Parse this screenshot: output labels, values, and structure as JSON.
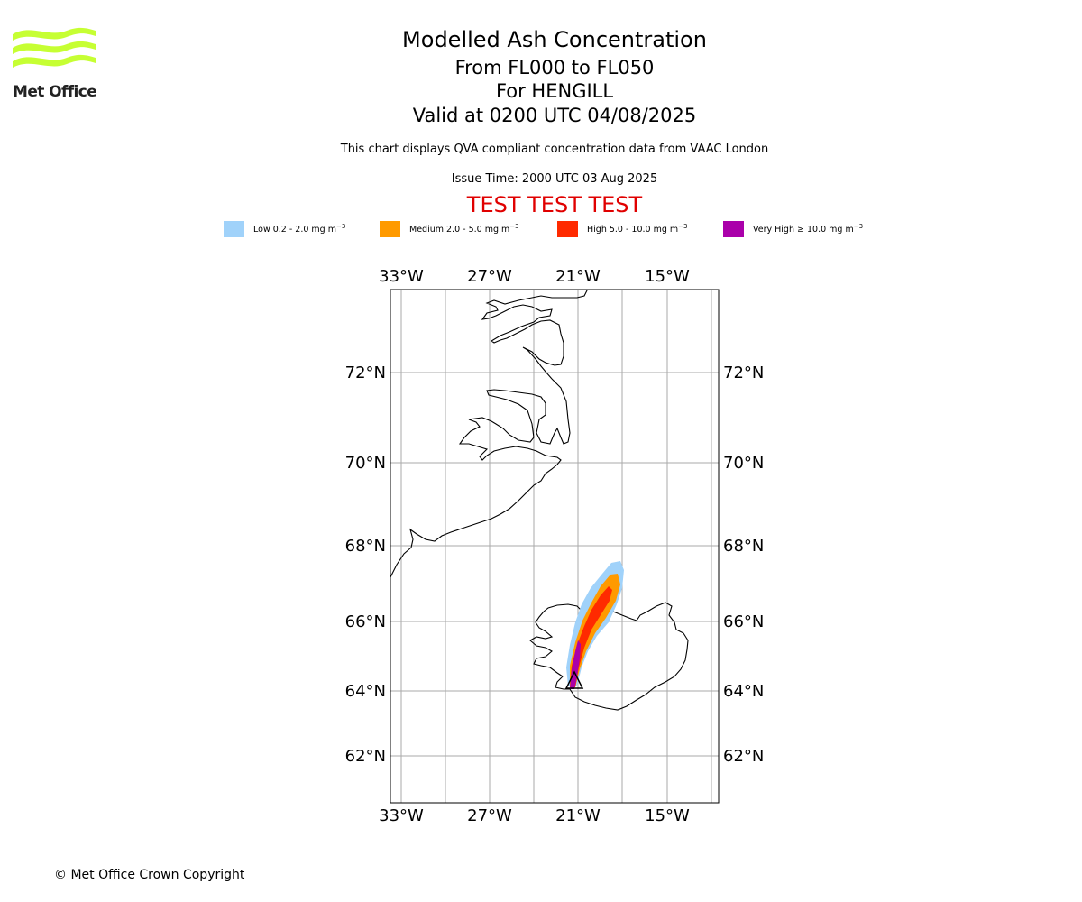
{
  "logo": {
    "name": "Met Office",
    "color": "#c6ff33"
  },
  "title": "Modelled Ash Concentration",
  "subtitle_levels": "From FL000 to FL050",
  "subtitle_volcano": "For HENGILL",
  "subtitle_valid": "Valid at 0200 UTC 04/08/2025",
  "description": "This chart displays QVA compliant concentration data from VAAC London",
  "issue_time": "Issue Time: 2000 UTC 03 Aug 2025",
  "test_banner": "TEST TEST TEST",
  "legend": [
    {
      "label": "Low 0.2 - 2.0 mg m",
      "unit_exp": "−3",
      "color": "#a0d2fa"
    },
    {
      "label": "Medium 2.0 - 5.0 mg m",
      "unit_exp": "−3",
      "color": "#ff9a00"
    },
    {
      "label": "High 5.0 - 10.0 mg m",
      "unit_exp": "−3",
      "color": "#ff2a00"
    },
    {
      "label": "Very High ≥ 10.0 mg m",
      "unit_exp": "−3",
      "color": "#aa00aa"
    }
  ],
  "map": {
    "lon_labels": [
      "33°W",
      "27°W",
      "21°W",
      "15°W"
    ],
    "lat_labels": [
      "72°N",
      "70°N",
      "68°N",
      "66°N",
      "64°N",
      "62°N"
    ],
    "volcano_marker": "volcano-triangle-icon",
    "gridline_color": "#aaaaaa"
  },
  "copyright": "© Met Office Crown Copyright"
}
